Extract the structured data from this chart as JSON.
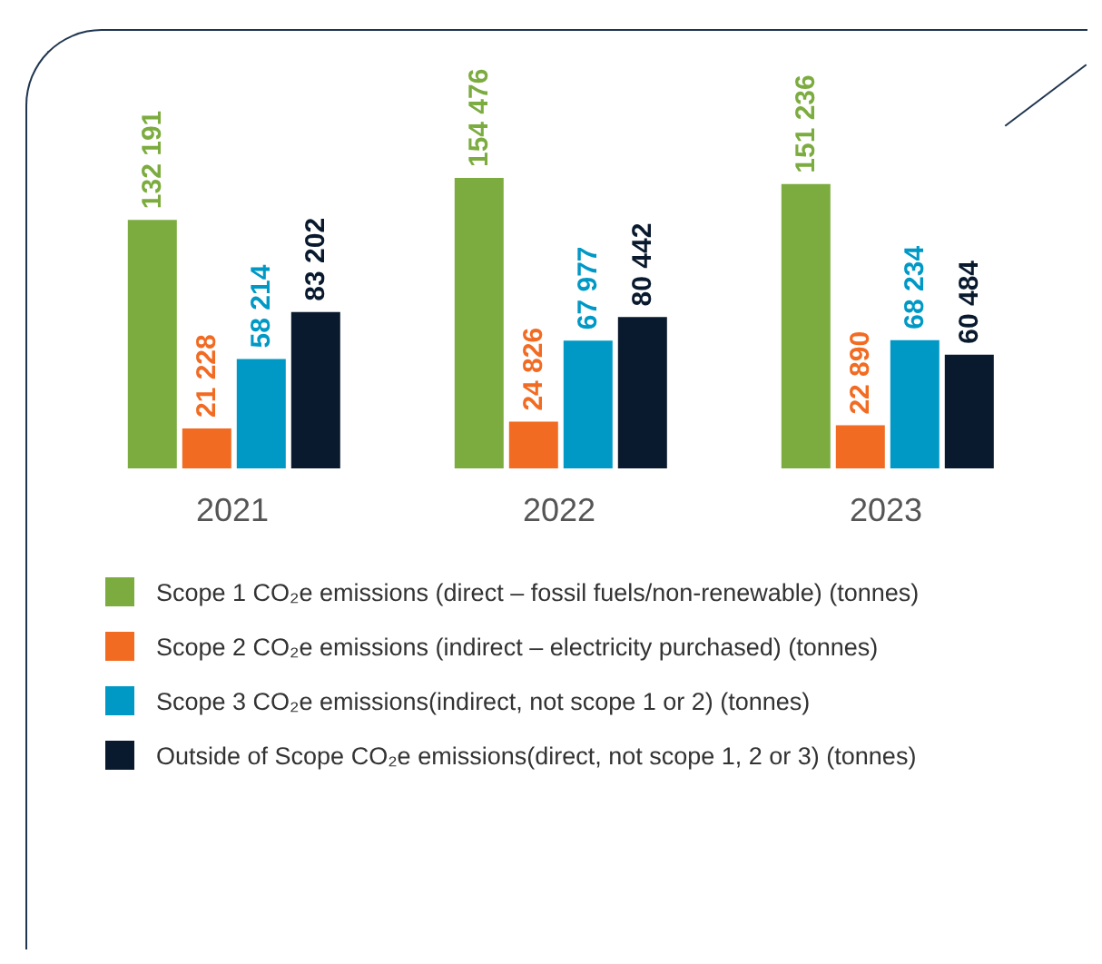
{
  "chart_data": {
    "type": "bar",
    "categories": [
      "2021",
      "2022",
      "2023"
    ],
    "series": [
      {
        "name": "Scope 1 CO₂e emissions (direct – fossil fuels/non-renewable) (tonnes)",
        "color": "#7cac3f",
        "values": [
          132191,
          154476,
          151236
        ]
      },
      {
        "name": "Scope 2 CO₂e emissions (indirect – electricity purchased) (tonnes)",
        "color": "#f26b22",
        "values": [
          21228,
          24826,
          22890
        ]
      },
      {
        "name": "Scope 3 CO₂e emissions(indirect, not scope 1 or 2) (tonnes)",
        "color": "#0099c6",
        "values": [
          58214,
          67977,
          68234
        ]
      },
      {
        "name": "Outside of Scope CO₂e emissions(direct, not scope 1, 2 or 3) (tonnes)",
        "color": "#0a1a2e",
        "values": [
          83202,
          80442,
          60484
        ]
      }
    ],
    "data_labels": true,
    "legend": "bottom",
    "grid": false
  }
}
